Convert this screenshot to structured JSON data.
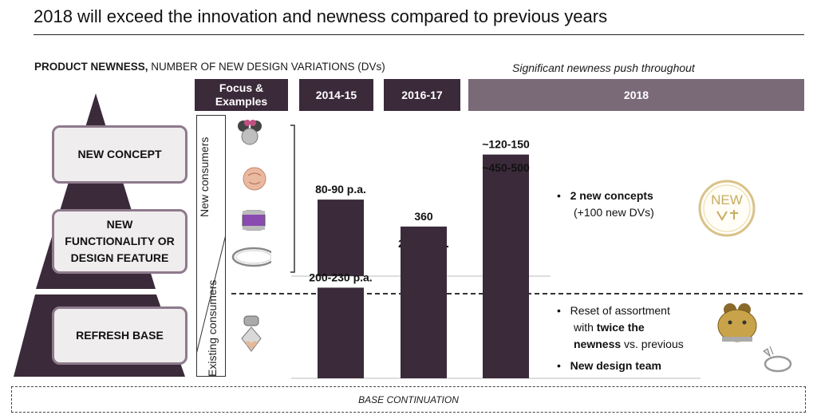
{
  "title": "2018 will exceed the innovation and newness compared to previous years",
  "subtitle_bold": "PRODUCT NEWNESS,",
  "subtitle_rest": " NUMBER OF NEW DESIGN VARIATIONS (DVs)",
  "annotation_2018": "Significant newness push throughout",
  "headers": {
    "focus_line1": "Focus &",
    "focus_line2": "Examples",
    "col1": "2014-15",
    "col2": "2016-17",
    "col3": "2018"
  },
  "pyramid_labels": {
    "new_concept": "NEW CONCEPT",
    "new_functionality_line1": "NEW",
    "new_functionality_line2": "FUNCTIONALITY OR",
    "new_functionality_line3": "DESIGN FEATURE",
    "refresh_base": "REFRESH BASE"
  },
  "consumer_labels": {
    "new": "New consumers",
    "existing": "Existing consumers"
  },
  "chart_data": [
    {
      "type": "bar",
      "categories": [
        "2014-15",
        "2016-17",
        "2018"
      ],
      "values": [
        85,
        25,
        135
      ],
      "data_labels": [
        "80-90 p.a.",
        "20-30 p.a.",
        "~120-150"
      ],
      "ylim": [
        0,
        140
      ]
    },
    {
      "type": "bar",
      "categories": [
        "2014-15",
        "2016-17",
        "2018"
      ],
      "values": [
        215,
        360,
        475
      ],
      "data_labels": [
        "200-230 p.a.",
        "360",
        "~450-500"
      ],
      "ylim": [
        0,
        780
      ]
    }
  ],
  "bullets_top": {
    "line1": "2 new concepts",
    "line2": "(+100 new DVs)"
  },
  "bullets_bottom": {
    "b1_line1": "Reset of assortment",
    "b1_line2_prefix": "with ",
    "b1_line2_bold": "twice the",
    "b1_line3_bold": "newness",
    "b1_line3_rest": " vs. previous",
    "b2": "New design team"
  },
  "badge_new": "NEW",
  "base_continuation": "BASE CONTINUATION",
  "colors": {
    "dark": "#3b2a3a",
    "header_2018": "#7a6a78",
    "label_border": "#8e7a8c",
    "label_fill": "#efeded"
  }
}
